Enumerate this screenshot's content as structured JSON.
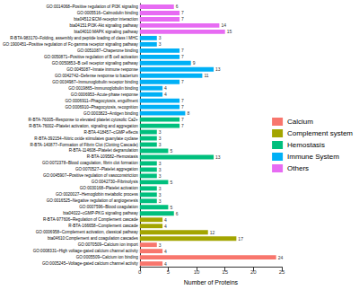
{
  "chart_data": {
    "type": "bar",
    "orientation": "horizontal",
    "x_label": "Number of Proteins",
    "xlim": [
      0,
      25
    ],
    "xticks": [
      0,
      5,
      10,
      15,
      20,
      25
    ],
    "grid": false,
    "legend": "right",
    "data_labels": true,
    "categories": [
      "GO:0014068~Positive regulation of PI3K signaling",
      "GO:0005516~Calmodulin binding",
      "bta04512:ECM-receptor interaction",
      "bta04151:PI3K-Akt signaling pathway",
      "bta04010:MAPK signaling pathway",
      "R-BTA-983170~Folding, assembly and peptide loading of class I MHC",
      "GO:1900451~Positive regulation of Fc-gamma receptor signaling pathway",
      "GO:0051087~Chaperone binding",
      "GO:0050871~Positive regulation of B cell activation",
      "GO:0050853~B cell receptor signaling pathway",
      "GO:0045087~Innate immune response",
      "GO:0042742~Defense response to bacterium",
      "GO:0034987~Immunoglobulin receptor binding",
      "GO:0019865~Immunoglobulin binding",
      "GO:0006953~Acute-phase response",
      "GO:0006911~Phagocytosis, engulfment",
      "GO:0006910~Phagocytosis, recognition",
      "GO:0003823~Antigen binding",
      "R-BTA-76005~Response to elevated platelet cytosolic Ca2+",
      "R-BTA-76002~Platelet activation, signaling and aggregation",
      "R-BTA-418457~cGMP effects",
      "R-BTA-392154~Nitric oxide stimulates guanylate cyclase",
      "R-BTA-140877~Formation of Fibrin Clot (Clotting Cascade)",
      "R-BTA-114608~Platelet degranulation",
      "R-BTA-109582~Hemostasis",
      "GO:0072378~Blood coagulation, fibrin clot formation",
      "GO:0070527~Platelet aggregation",
      "GO:0045907~Positive regulation of vasoconstriction",
      "GO:0042730~Fibrinolysis",
      "GO:0030168~Platelet activation",
      "GO:0020027~Hemoglobin metabolic process",
      "GO:0016525~Negative regulation of angiogenesis",
      "GO:0007596~Blood coagulation",
      "bta04022~cGMP-PKG signaling pathway",
      "R-BTA-977606~Regulation of Complement cascade",
      "R-BTA-166658~Complement cascade",
      "GO:0006958~Complement activation, classical pathway",
      "bta04610:Complement and coagulation cascades",
      "GO:0070509~Calcium ion import",
      "GO:0008331~High voltage-gated calcium channel activity",
      "GO:0005509~Calcium ion binding",
      "GO:0005245~Voltage-gated calcium channel activity"
    ],
    "series": [
      {
        "name": "Calcium",
        "color": "#F8766D",
        "values": [
          null,
          null,
          null,
          null,
          null,
          null,
          null,
          null,
          null,
          null,
          null,
          null,
          null,
          null,
          null,
          null,
          null,
          null,
          null,
          null,
          null,
          null,
          null,
          null,
          null,
          null,
          null,
          null,
          null,
          null,
          null,
          null,
          null,
          null,
          null,
          null,
          null,
          null,
          3,
          4,
          24,
          4
        ]
      },
      {
        "name": "Complement system",
        "color": "#A3A500",
        "values": [
          null,
          null,
          null,
          null,
          null,
          null,
          null,
          null,
          null,
          null,
          null,
          null,
          null,
          null,
          null,
          null,
          null,
          null,
          null,
          null,
          null,
          null,
          null,
          null,
          null,
          null,
          null,
          null,
          null,
          null,
          null,
          null,
          null,
          null,
          4,
          4,
          12,
          17,
          null,
          null,
          null,
          null
        ]
      },
      {
        "name": "Hemostasis",
        "color": "#00BF7D",
        "values": [
          null,
          null,
          null,
          null,
          null,
          null,
          null,
          null,
          null,
          null,
          null,
          null,
          null,
          null,
          null,
          null,
          null,
          null,
          7,
          7,
          3,
          3,
          3,
          5,
          13,
          3,
          3,
          3,
          5,
          3,
          3,
          3,
          5,
          6,
          null,
          null,
          null,
          null,
          null,
          null,
          null,
          null
        ]
      },
      {
        "name": "Immune System",
        "color": "#00B0F6",
        "values": [
          null,
          null,
          null,
          null,
          null,
          3,
          3,
          7,
          7,
          9,
          13,
          11,
          7,
          4,
          4,
          7,
          7,
          8,
          null,
          null,
          null,
          null,
          null,
          null,
          null,
          null,
          null,
          null,
          null,
          null,
          null,
          null,
          null,
          null,
          null,
          null,
          null,
          null,
          null,
          null,
          null,
          null
        ]
      },
      {
        "name": "Others",
        "color": "#E76BF3",
        "values": [
          6,
          7,
          7,
          14,
          15,
          null,
          null,
          null,
          null,
          null,
          null,
          null,
          null,
          null,
          null,
          null,
          null,
          null,
          null,
          null,
          null,
          null,
          null,
          null,
          null,
          null,
          null,
          null,
          null,
          null,
          null,
          null,
          null,
          null,
          null,
          null,
          null,
          null,
          null,
          null,
          null,
          null
        ]
      }
    ]
  }
}
